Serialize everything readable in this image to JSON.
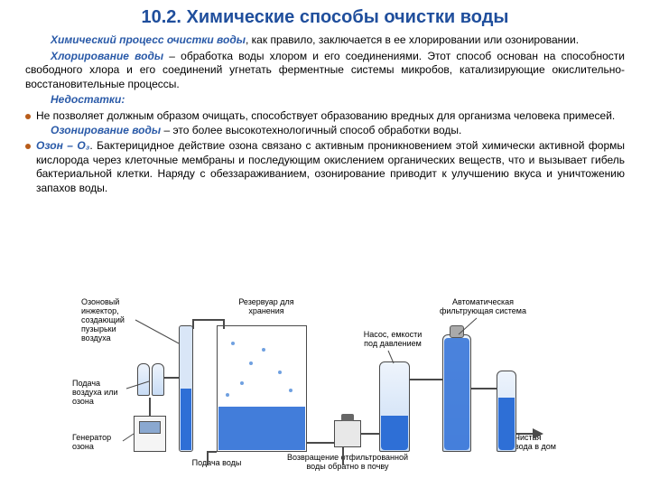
{
  "title": "10.2. Химические способы очистки воды",
  "p1_a": "Химический процесс очистки воды",
  "p1_b": ", как правило, заключается в ее хлорировании или озонировании.",
  "p2_a": "Хлорирование воды",
  "p2_b": " – обработка воды хлором и его соединениями. Этот способ основан на способности свободного хлора и его соединений угнетать ферментные системы микробов, катализирующие окислительно-восстановительные процессы.",
  "p3": "Недостатки:",
  "p4": "Не позволяет должным образом очищать, способствует образованию вредных для организма человека примесей.",
  "p5_a": "Озонирование воды",
  "p5_b": " – это более высокотехнологичный способ обработки воды.",
  "p6_a": "Озон – О₃",
  "p6_b": ". Бактерицидное действие озона связано с активным проникновением этой химически активной формы кислорода через клеточные мембраны и последующим окислением органических веществ, что и вызывает гибель бактериальной клетки. Наряду с обеззараживанием, озонирование приводит к улучшению вкуса и уничтожению запахов воды.",
  "labels": {
    "injector": "Озоновый\nинжектор,\nсоздающий\nпузырьки\nвоздуха",
    "air_in": "Подача\nвоздуха или\nозона",
    "generator": "Генератор\nозона",
    "reservoir": "Резервуар для\nхранения",
    "water_in": "Подача воды",
    "return": "Возвращение отфильтрованной\nводы обратно в почву",
    "pump": "Насос, емкости\nпод давлением",
    "filter": "Автоматическая\nфильтрующая система",
    "clean": "Чистая\nвода в дом"
  },
  "colors": {
    "title": "#1f4e9c",
    "highlight": "#2a5aa8",
    "bullet": "#b85c1a",
    "water": "#2e6fd6",
    "tank_fill": "#c8dcf5"
  }
}
